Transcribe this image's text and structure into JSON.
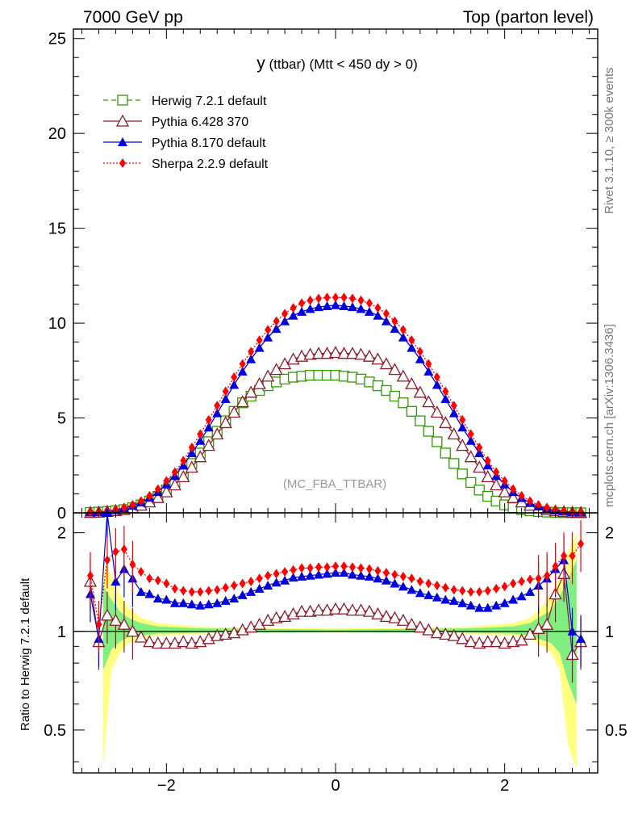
{
  "header": {
    "left": "7000 GeV pp",
    "right": "Top (parton level)"
  },
  "side_labels": {
    "rivet": "Rivet 3.1.10, ≥ 300k events",
    "mcplots": "mcplots.cern.ch [arXiv:1306.3436]"
  },
  "chart_data": {
    "type": "line",
    "title_main": "y",
    "title_rest": " (ttbar) (Mtt < 450 dy > 0)",
    "watermark": "(MC_FBA_TTBAR)",
    "xlim": [
      -3.1,
      3.1
    ],
    "ylim": [
      0,
      25.5
    ],
    "x_ticks": [
      -2,
      0,
      2
    ],
    "x_tick_labels": [
      "−2",
      "0",
      "2"
    ],
    "y_ticks": [
      0,
      5,
      10,
      15,
      20,
      25
    ],
    "y_tick_labels": [
      "0",
      "5",
      "10",
      "15",
      "20",
      "25"
    ],
    "ratio": {
      "ylabel": "Ratio to Herwig 7.2.1 default",
      "ylim": [
        0.37,
        2.3
      ],
      "y_ticks": [
        0.5,
        1,
        2
      ],
      "y_tick_labels": [
        "0.5",
        "1",
        "2"
      ],
      "band_yellow": [
        [
          -2.75,
          0.38,
          1.65
        ],
        [
          -2.65,
          0.76,
          1.48
        ],
        [
          -2.55,
          0.86,
          1.3
        ],
        [
          -2.45,
          0.92,
          1.18
        ],
        [
          -2.3,
          0.95,
          1.1
        ],
        [
          -2.1,
          0.97,
          1.06
        ],
        [
          -1.5,
          0.985,
          1.03
        ],
        [
          0,
          0.99,
          1.02
        ],
        [
          1.5,
          0.985,
          1.03
        ],
        [
          2.1,
          0.97,
          1.06
        ],
        [
          2.3,
          0.95,
          1.1
        ],
        [
          2.45,
          0.9,
          1.2
        ],
        [
          2.55,
          0.86,
          1.3
        ],
        [
          2.65,
          0.76,
          1.45
        ],
        [
          2.75,
          0.45,
          1.75
        ],
        [
          2.85,
          0.38,
          2.0
        ]
      ],
      "band_green": [
        [
          -2.75,
          0.76,
          1.38
        ],
        [
          -2.65,
          0.88,
          1.25
        ],
        [
          -2.55,
          0.93,
          1.15
        ],
        [
          -2.45,
          0.96,
          1.1
        ],
        [
          -2.3,
          0.97,
          1.06
        ],
        [
          -2.1,
          0.985,
          1.035
        ],
        [
          -1.5,
          0.99,
          1.02
        ],
        [
          0,
          0.995,
          1.012
        ],
        [
          1.5,
          0.99,
          1.02
        ],
        [
          2.1,
          0.985,
          1.035
        ],
        [
          2.3,
          0.97,
          1.06
        ],
        [
          2.45,
          0.94,
          1.12
        ],
        [
          2.55,
          0.92,
          1.16
        ],
        [
          2.65,
          0.86,
          1.28
        ],
        [
          2.75,
          0.7,
          1.45
        ],
        [
          2.85,
          0.6,
          1.65
        ]
      ]
    },
    "x": [
      -2.9,
      -2.8,
      -2.7,
      -2.6,
      -2.5,
      -2.4,
      -2.3,
      -2.2,
      -2.1,
      -2.0,
      -1.9,
      -1.8,
      -1.7,
      -1.6,
      -1.5,
      -1.4,
      -1.3,
      -1.2,
      -1.1,
      -1.0,
      -0.9,
      -0.8,
      -0.7,
      -0.6,
      -0.5,
      -0.4,
      -0.3,
      -0.2,
      -0.1,
      0.0,
      0.1,
      0.2,
      0.3,
      0.4,
      0.5,
      0.6,
      0.7,
      0.8,
      0.9,
      1.0,
      1.1,
      1.2,
      1.3,
      1.4,
      1.5,
      1.6,
      1.7,
      1.8,
      1.9,
      2.0,
      2.1,
      2.2,
      2.3,
      2.4,
      2.5,
      2.6,
      2.7,
      2.8,
      2.9
    ],
    "series": [
      {
        "name": "Herwig 7.2.1 default",
        "color": "#339900",
        "marker": "open-square",
        "dash": "6,4",
        "values": [
          0.02,
          0.04,
          0.07,
          0.11,
          0.17,
          0.27,
          0.42,
          0.62,
          0.87,
          1.2,
          1.6,
          2.05,
          2.6,
          3.15,
          3.75,
          4.3,
          4.85,
          5.35,
          5.8,
          6.15,
          6.45,
          6.7,
          6.9,
          7.05,
          7.15,
          7.2,
          7.25,
          7.25,
          7.25,
          7.25,
          7.2,
          7.15,
          7.05,
          6.9,
          6.7,
          6.45,
          6.15,
          5.8,
          5.35,
          4.85,
          4.3,
          3.75,
          3.15,
          2.6,
          2.05,
          1.6,
          1.2,
          0.87,
          0.62,
          0.42,
          0.27,
          0.17,
          0.11,
          0.07,
          0.04,
          0.02,
          0.01,
          0.005,
          0.003
        ]
      },
      {
        "name": "Pythia 6.428 370",
        "color": "#8b1a2a",
        "marker": "open-triangle",
        "dash": "",
        "values": [
          0.015,
          0.035,
          0.08,
          0.12,
          0.18,
          0.27,
          0.4,
          0.57,
          0.8,
          1.1,
          1.47,
          1.9,
          2.4,
          2.95,
          3.55,
          4.15,
          4.75,
          5.3,
          5.85,
          6.35,
          6.8,
          7.2,
          7.55,
          7.85,
          8.1,
          8.25,
          8.35,
          8.4,
          8.4,
          8.45,
          8.4,
          8.4,
          8.35,
          8.25,
          8.1,
          7.85,
          7.55,
          7.2,
          6.8,
          6.35,
          5.85,
          5.3,
          4.75,
          4.15,
          3.55,
          2.95,
          2.4,
          1.9,
          1.47,
          1.1,
          0.8,
          0.57,
          0.4,
          0.26,
          0.16,
          0.1,
          0.06,
          0.03,
          0.015
        ]
      },
      {
        "name": "Pythia 8.170 default",
        "color": "#0000dd",
        "marker": "filled-triangle",
        "dash": "",
        "values": [
          0.02,
          0.04,
          0.08,
          0.15,
          0.25,
          0.38,
          0.55,
          0.8,
          1.1,
          1.5,
          1.95,
          2.5,
          3.15,
          3.8,
          4.5,
          5.25,
          6.0,
          6.75,
          7.45,
          8.1,
          8.7,
          9.25,
          9.7,
          10.1,
          10.4,
          10.6,
          10.75,
          10.85,
          10.9,
          10.95,
          10.9,
          10.85,
          10.75,
          10.6,
          10.4,
          10.1,
          9.7,
          9.25,
          8.7,
          8.1,
          7.45,
          6.75,
          6.0,
          5.25,
          4.5,
          3.8,
          3.15,
          2.5,
          1.95,
          1.5,
          1.1,
          0.78,
          0.52,
          0.34,
          0.21,
          0.12,
          0.07,
          0.03,
          0.01
        ]
      },
      {
        "name": "Sherpa 2.2.9 default",
        "color": "#ff0000",
        "marker": "filled-diamond",
        "dash": "2,2",
        "values": [
          0.02,
          0.045,
          0.09,
          0.18,
          0.28,
          0.42,
          0.62,
          0.9,
          1.25,
          1.68,
          2.15,
          2.75,
          3.45,
          4.15,
          4.9,
          5.65,
          6.4,
          7.15,
          7.85,
          8.5,
          9.1,
          9.65,
          10.1,
          10.5,
          10.8,
          11.05,
          11.2,
          11.3,
          11.35,
          11.35,
          11.35,
          11.3,
          11.2,
          11.05,
          10.8,
          10.5,
          10.1,
          9.65,
          9.1,
          8.5,
          7.85,
          7.15,
          6.4,
          5.65,
          4.9,
          4.15,
          3.45,
          2.75,
          2.15,
          1.68,
          1.25,
          0.9,
          0.62,
          0.42,
          0.28,
          0.18,
          0.09,
          0.045,
          0.02
        ]
      }
    ],
    "ratio_series": [
      {
        "name": "Pythia 6.428 370",
        "values": [
          1.42,
          0.93,
          1.12,
          1.08,
          1.05,
          1.0,
          0.96,
          0.93,
          0.92,
          0.92,
          0.92,
          0.93,
          0.92,
          0.93,
          0.95,
          0.97,
          0.98,
          0.99,
          1.01,
          1.03,
          1.05,
          1.08,
          1.1,
          1.11,
          1.13,
          1.15,
          1.15,
          1.16,
          1.16,
          1.17,
          1.17,
          1.16,
          1.16,
          1.15,
          1.13,
          1.11,
          1.1,
          1.08,
          1.05,
          1.03,
          1.01,
          0.99,
          0.98,
          0.97,
          0.95,
          0.93,
          0.92,
          0.93,
          0.93,
          0.92,
          0.93,
          0.94,
          0.98,
          1.02,
          1.05,
          1.3,
          1.5,
          0.85,
          0.93
        ]
      },
      {
        "name": "Pythia 8.170 default",
        "values": [
          1.3,
          0.95,
          2.35,
          1.42,
          1.55,
          1.45,
          1.32,
          1.3,
          1.26,
          1.25,
          1.22,
          1.22,
          1.21,
          1.2,
          1.21,
          1.22,
          1.24,
          1.26,
          1.29,
          1.32,
          1.35,
          1.38,
          1.41,
          1.43,
          1.46,
          1.47,
          1.48,
          1.49,
          1.5,
          1.51,
          1.51,
          1.49,
          1.48,
          1.47,
          1.45,
          1.43,
          1.4,
          1.37,
          1.34,
          1.31,
          1.29,
          1.27,
          1.25,
          1.24,
          1.22,
          1.2,
          1.18,
          1.18,
          1.2,
          1.22,
          1.25,
          1.28,
          1.32,
          1.38,
          1.45,
          1.55,
          1.65,
          1.0,
          0.95
        ]
      },
      {
        "name": "Sherpa 2.2.9 default",
        "values": [
          1.48,
          1.05,
          1.65,
          1.75,
          1.78,
          1.6,
          1.52,
          1.45,
          1.43,
          1.4,
          1.35,
          1.33,
          1.32,
          1.32,
          1.33,
          1.34,
          1.36,
          1.38,
          1.4,
          1.42,
          1.45,
          1.48,
          1.5,
          1.52,
          1.54,
          1.56,
          1.56,
          1.57,
          1.57,
          1.58,
          1.58,
          1.57,
          1.56,
          1.55,
          1.53,
          1.51,
          1.49,
          1.47,
          1.45,
          1.42,
          1.4,
          1.38,
          1.36,
          1.34,
          1.33,
          1.32,
          1.32,
          1.33,
          1.35,
          1.37,
          1.4,
          1.42,
          1.44,
          1.45,
          1.48,
          1.58,
          1.7,
          1.7,
          1.85
        ]
      }
    ]
  }
}
